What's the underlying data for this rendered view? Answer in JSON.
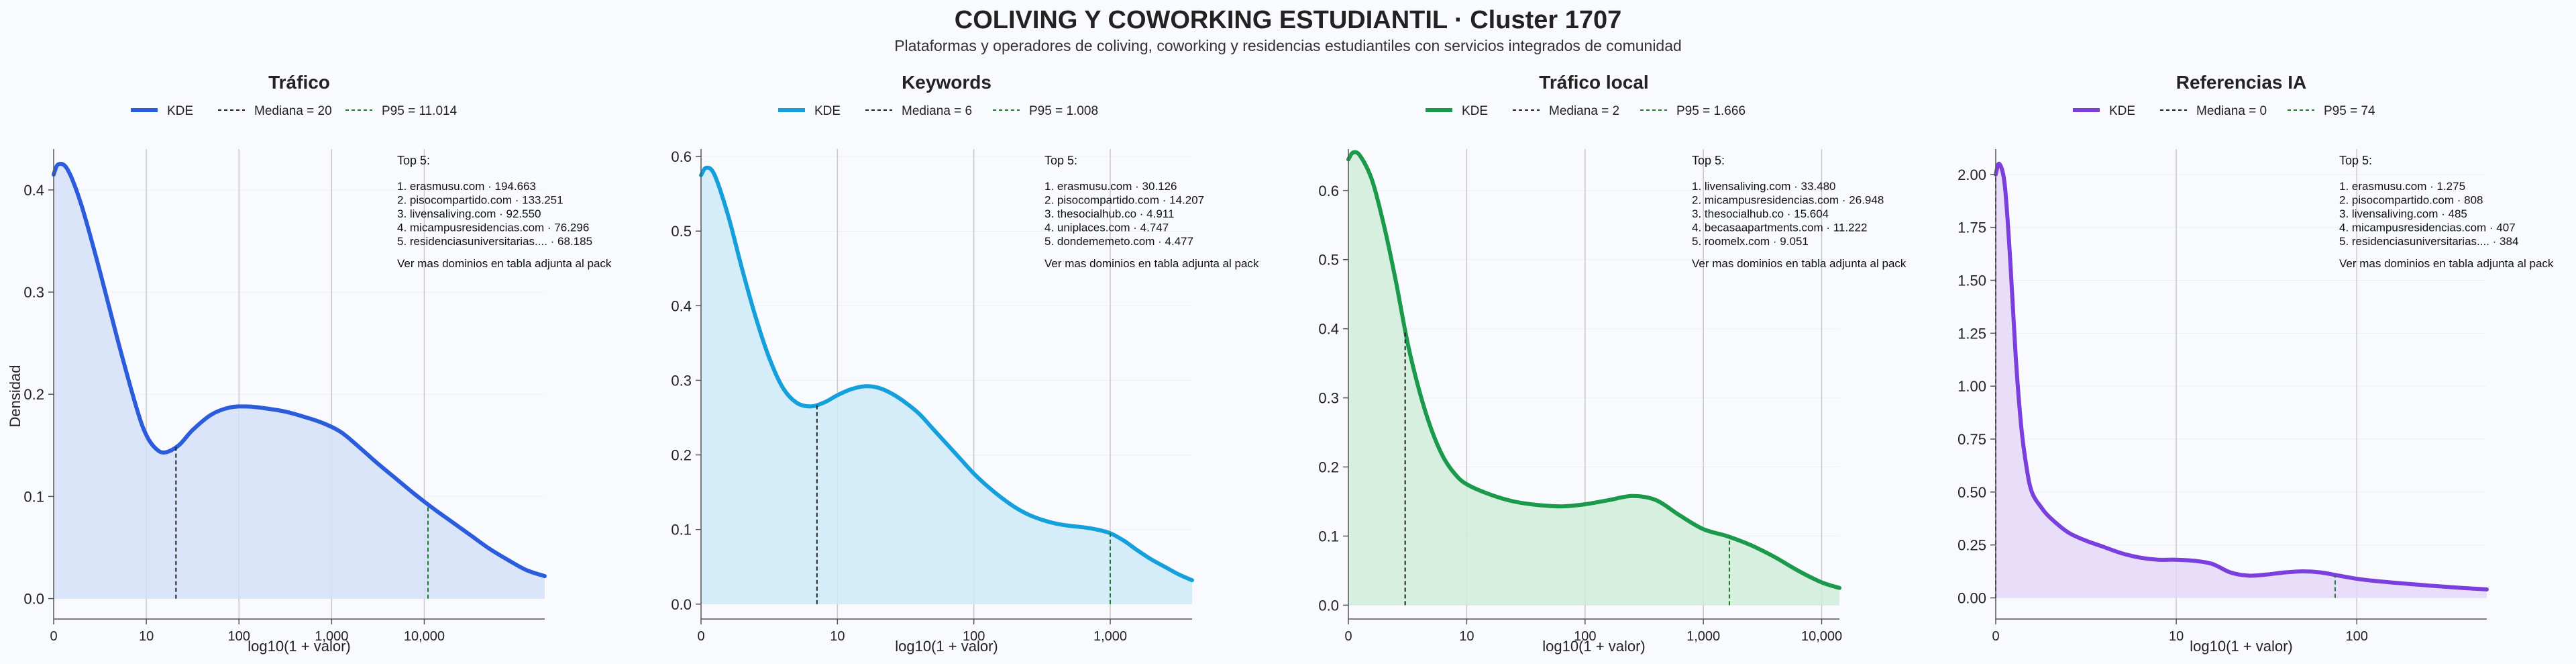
{
  "header": {
    "title": "COLIVING Y COWORKING ESTUDIANTIL · Cluster 1707",
    "subtitle": "Plataformas y operadores de coliving, coworking y residencias estudiantiles con servicios integrados de comunidad"
  },
  "colors": {
    "kde_panels": [
      "#2a5cdb",
      "#16a0db",
      "#1a9a4a",
      "#7a3fdc"
    ],
    "fill_panels": [
      "#d5e0f8",
      "#cfeaf8",
      "#d0ecd9",
      "#e5d8f8"
    ],
    "median_line": "#222222",
    "p95_line": "#1a7a2a",
    "grid": "#cccccc",
    "axis": "#555555"
  },
  "shared": {
    "ylabel": "Densidad",
    "xlabel": "log10(1 + valor)",
    "legend_kde": "KDE",
    "footer_note": "Ver mas dominios en tabla adjunta al pack",
    "top_title": "Top 5:"
  },
  "chart_data": [
    {
      "type": "area",
      "title": "Tráfico",
      "legend": {
        "kde": "KDE",
        "median": "Mediana = 20",
        "p95": "P95 = 11.014"
      },
      "median_x": 1.32,
      "p95_x": 4.04,
      "xlim": [
        0,
        5.3
      ],
      "ylim": [
        -0.02,
        0.44
      ],
      "xticks": [
        0,
        1,
        2,
        3,
        4
      ],
      "xtick_labels": [
        "0",
        "10",
        "100",
        "1,000",
        "10,000"
      ],
      "yticks": [
        0.0,
        0.1,
        0.2,
        0.3,
        0.4
      ],
      "ytick_labels": [
        "0.0",
        "0.1",
        "0.2",
        "0.3",
        "0.4"
      ],
      "kde": {
        "x": [
          0,
          0.05,
          0.15,
          0.3,
          0.5,
          0.7,
          0.9,
          1.0,
          1.1,
          1.2,
          1.35,
          1.5,
          1.7,
          1.9,
          2.1,
          2.3,
          2.5,
          2.7,
          2.9,
          3.1,
          3.3,
          3.5,
          3.7,
          3.9,
          4.1,
          4.3,
          4.5,
          4.7,
          4.9,
          5.1,
          5.3
        ],
        "y": [
          0.415,
          0.425,
          0.42,
          0.385,
          0.32,
          0.25,
          0.185,
          0.16,
          0.147,
          0.143,
          0.15,
          0.165,
          0.18,
          0.187,
          0.188,
          0.186,
          0.183,
          0.178,
          0.172,
          0.163,
          0.148,
          0.132,
          0.117,
          0.102,
          0.088,
          0.075,
          0.062,
          0.049,
          0.038,
          0.028,
          0.022
        ]
      },
      "top5": [
        "1. erasmusu.com · 194.663",
        "2. pisocompartido.com · 133.251",
        "3. livensaliving.com · 92.550",
        "4. micampusresidencias.com · 76.296",
        "5. residenciasuniversitarias.... · 68.185"
      ]
    },
    {
      "type": "area",
      "title": "Keywords",
      "legend": {
        "kde": "KDE",
        "median": "Mediana = 6",
        "p95": "P95 = 1.008"
      },
      "median_x": 0.85,
      "p95_x": 3.0,
      "xlim": [
        0,
        3.6
      ],
      "ylim": [
        -0.02,
        0.61
      ],
      "xticks": [
        0,
        1,
        2,
        3
      ],
      "xtick_labels": [
        "0",
        "10",
        "100",
        "1,000"
      ],
      "yticks": [
        0.0,
        0.1,
        0.2,
        0.3,
        0.4,
        0.5,
        0.6
      ],
      "ytick_labels": [
        "0.0",
        "0.1",
        "0.2",
        "0.3",
        "0.4",
        "0.5",
        "0.6"
      ],
      "kde": {
        "x": [
          0,
          0.04,
          0.1,
          0.2,
          0.3,
          0.4,
          0.5,
          0.6,
          0.7,
          0.8,
          0.9,
          1.0,
          1.1,
          1.2,
          1.3,
          1.4,
          1.5,
          1.6,
          1.7,
          1.8,
          1.9,
          2.0,
          2.1,
          2.2,
          2.3,
          2.4,
          2.5,
          2.6,
          2.7,
          2.8,
          2.9,
          3.0,
          3.1,
          3.2,
          3.3,
          3.4,
          3.5,
          3.6
        ],
        "y": [
          0.575,
          0.585,
          0.575,
          0.52,
          0.45,
          0.385,
          0.33,
          0.29,
          0.27,
          0.265,
          0.27,
          0.28,
          0.288,
          0.292,
          0.29,
          0.282,
          0.27,
          0.255,
          0.235,
          0.215,
          0.195,
          0.175,
          0.158,
          0.143,
          0.13,
          0.12,
          0.113,
          0.108,
          0.105,
          0.103,
          0.1,
          0.095,
          0.085,
          0.072,
          0.06,
          0.05,
          0.04,
          0.032
        ]
      },
      "top5": [
        "1. erasmusu.com · 30.126",
        "2. pisocompartido.com · 14.207",
        "3. thesocialhub.co · 4.911",
        "4. uniplaces.com · 4.747",
        "5. dondememeto.com · 4.477"
      ]
    },
    {
      "type": "area",
      "title": "Tráfico local",
      "legend": {
        "kde": "KDE",
        "median": "Mediana = 2",
        "p95": "P95 = 1.666"
      },
      "median_x": 0.48,
      "p95_x": 3.22,
      "xlim": [
        0,
        4.15
      ],
      "ylim": [
        -0.02,
        0.66
      ],
      "xticks": [
        0,
        1,
        2,
        3,
        4
      ],
      "xtick_labels": [
        "0",
        "10",
        "100",
        "1,000",
        "10,000"
      ],
      "yticks": [
        0.0,
        0.1,
        0.2,
        0.3,
        0.4,
        0.5,
        0.6
      ],
      "ytick_labels": [
        "0.0",
        "0.1",
        "0.2",
        "0.3",
        "0.4",
        "0.5",
        "0.6"
      ],
      "kde": {
        "x": [
          0,
          0.04,
          0.1,
          0.2,
          0.3,
          0.4,
          0.5,
          0.6,
          0.7,
          0.8,
          0.9,
          1.0,
          1.2,
          1.4,
          1.6,
          1.8,
          2.0,
          2.2,
          2.4,
          2.6,
          2.8,
          3.0,
          3.2,
          3.4,
          3.6,
          3.8,
          4.0,
          4.15
        ],
        "y": [
          0.645,
          0.655,
          0.65,
          0.615,
          0.55,
          0.47,
          0.38,
          0.31,
          0.255,
          0.215,
          0.19,
          0.175,
          0.16,
          0.15,
          0.145,
          0.143,
          0.146,
          0.152,
          0.158,
          0.152,
          0.13,
          0.11,
          0.1,
          0.087,
          0.07,
          0.05,
          0.033,
          0.025
        ]
      },
      "top5": [
        "1. livensaliving.com · 33.480",
        "2. micampusresidencias.com · 26.948",
        "3. thesocialhub.co · 15.604",
        "4. becasaapartments.com · 11.222",
        "5. roomelx.com · 9.051"
      ]
    },
    {
      "type": "area",
      "title": "Referencias IA",
      "legend": {
        "kde": "KDE",
        "median": "Mediana = 0",
        "p95": "P95 = 74"
      },
      "median_x": 0.0,
      "p95_x": 1.88,
      "xlim": [
        0,
        2.72
      ],
      "ylim": [
        -0.1,
        2.12
      ],
      "xticks": [
        0,
        1,
        2
      ],
      "xtick_labels": [
        "0",
        "10",
        "100"
      ],
      "yticks": [
        0.0,
        0.25,
        0.5,
        0.75,
        1.0,
        1.25,
        1.5,
        1.75,
        2.0
      ],
      "ytick_labels": [
        "0.00",
        "0.25",
        "0.50",
        "0.75",
        "1.00",
        "1.25",
        "1.50",
        "1.75",
        "2.00"
      ],
      "kde": {
        "x": [
          0,
          0.02,
          0.05,
          0.08,
          0.11,
          0.14,
          0.17,
          0.2,
          0.25,
          0.3,
          0.4,
          0.5,
          0.6,
          0.7,
          0.8,
          0.9,
          1.0,
          1.1,
          1.2,
          1.3,
          1.4,
          1.5,
          1.6,
          1.7,
          1.8,
          1.9,
          2.0,
          2.1,
          2.2,
          2.3,
          2.4,
          2.5,
          2.6,
          2.72
        ],
        "y": [
          2.0,
          2.05,
          1.95,
          1.6,
          1.15,
          0.82,
          0.62,
          0.5,
          0.43,
          0.38,
          0.31,
          0.27,
          0.24,
          0.21,
          0.19,
          0.18,
          0.18,
          0.175,
          0.16,
          0.12,
          0.105,
          0.11,
          0.12,
          0.125,
          0.12,
          0.105,
          0.09,
          0.08,
          0.072,
          0.065,
          0.058,
          0.052,
          0.046,
          0.04
        ]
      },
      "top5": [
        "1. erasmusu.com · 1.275",
        "2. pisocompartido.com · 808",
        "3. livensaliving.com · 485",
        "4. micampusresidencias.com · 407",
        "5. residenciasuniversitarias.... · 384"
      ]
    }
  ]
}
